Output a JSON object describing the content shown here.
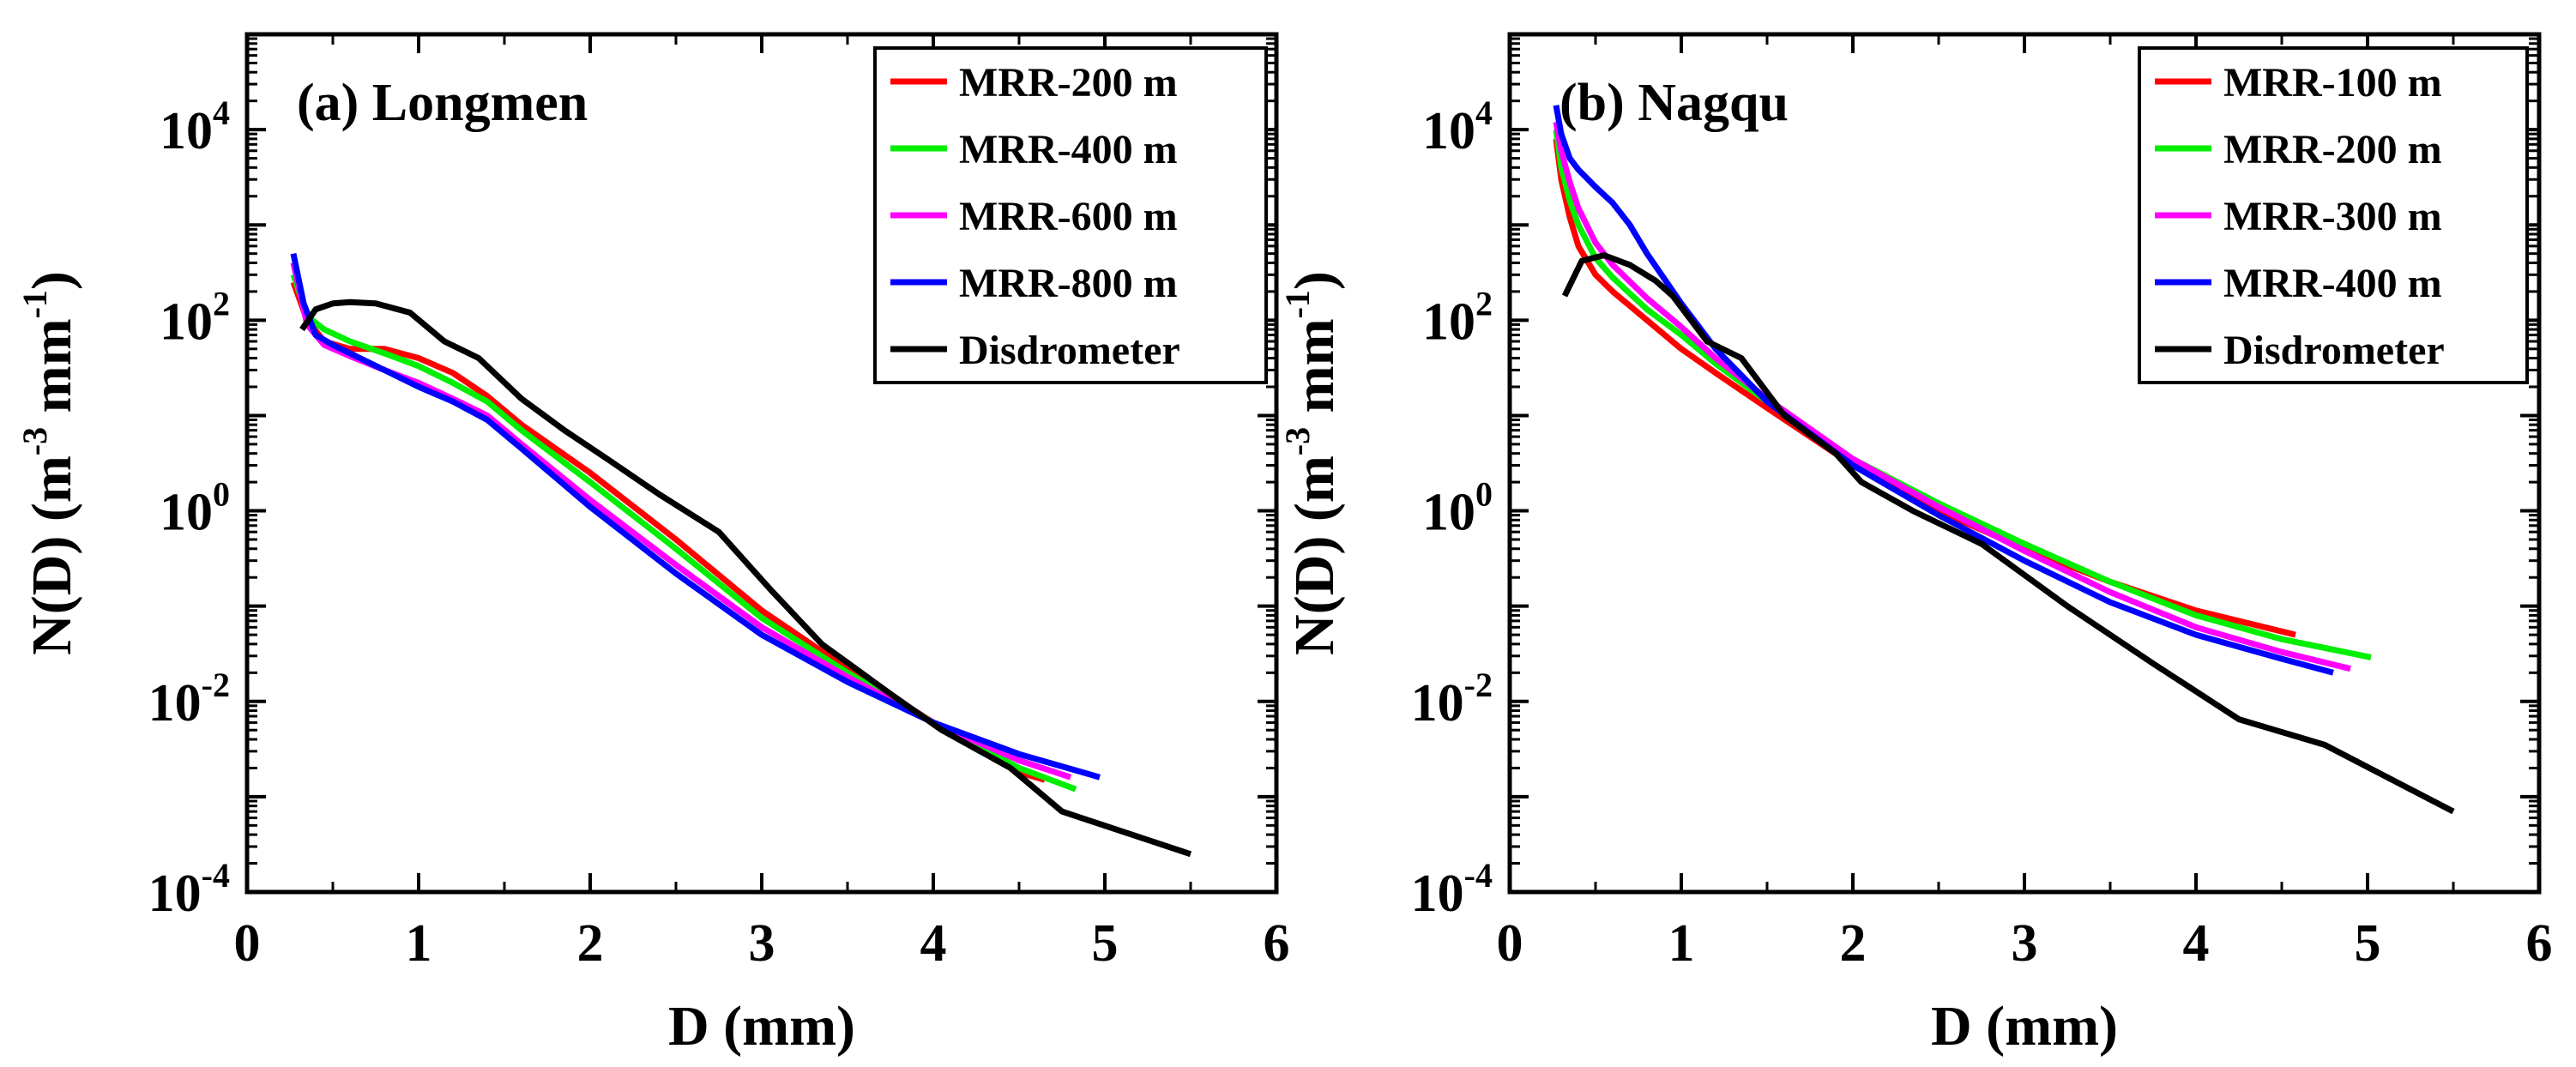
{
  "chart_data": [
    {
      "type": "line",
      "title": "(a) Longmen",
      "xlabel": "D (mm)",
      "ylabel": {
        "base": "N(D) (m",
        "exp1": "-3",
        "mid": " mm",
        "exp2": "-1",
        "end": ")"
      },
      "xlim": [
        0,
        6
      ],
      "ylim": [
        0.0001,
        100000
      ],
      "yscale": "log",
      "xticks": [
        "0",
        "1",
        "2",
        "3",
        "4",
        "5",
        "6"
      ],
      "yticks": [
        {
          "base": "10",
          "exp": "-4",
          "value": 0.0001
        },
        {
          "base": "10",
          "exp": "-2",
          "value": 0.01
        },
        {
          "base": "10",
          "exp": "0",
          "value": 1
        },
        {
          "base": "10",
          "exp": "2",
          "value": 100
        },
        {
          "base": "10",
          "exp": "4",
          "value": 10000
        }
      ],
      "grid": false,
      "legend_position": "top-right",
      "series": [
        {
          "name": "MRR-200 m",
          "color": "#ff0000",
          "x": [
            0.27,
            0.35,
            0.45,
            0.6,
            0.8,
            1.0,
            1.2,
            1.4,
            1.6,
            2.0,
            2.5,
            3.0,
            3.5,
            4.0,
            4.5,
            4.65
          ],
          "y": [
            250,
            100,
            60,
            50,
            50,
            40,
            28,
            16,
            8,
            2.5,
            0.5,
            0.09,
            0.022,
            0.006,
            0.0018,
            0.0015
          ]
        },
        {
          "name": "MRR-400 m",
          "color": "#00ee00",
          "x": [
            0.27,
            0.35,
            0.45,
            0.6,
            0.8,
            1.0,
            1.2,
            1.4,
            1.6,
            2.0,
            2.5,
            3.0,
            3.5,
            4.0,
            4.5,
            4.83
          ],
          "y": [
            300,
            110,
            80,
            60,
            45,
            33,
            22,
            14,
            7,
            2.0,
            0.4,
            0.075,
            0.02,
            0.006,
            0.002,
            0.0012
          ]
        },
        {
          "name": "MRR-600 m",
          "color": "#ff00ff",
          "x": [
            0.27,
            0.35,
            0.45,
            0.6,
            0.8,
            1.0,
            1.2,
            1.4,
            1.6,
            2.0,
            2.5,
            3.0,
            3.5,
            4.0,
            4.5,
            4.8
          ],
          "y": [
            400,
            90,
            55,
            42,
            30,
            22,
            15,
            10,
            5,
            1.3,
            0.27,
            0.06,
            0.018,
            0.006,
            0.0024,
            0.0016
          ]
        },
        {
          "name": "MRR-800 m",
          "color": "#0000ff",
          "x": [
            0.27,
            0.33,
            0.4,
            0.5,
            0.6,
            0.8,
            1.0,
            1.2,
            1.4,
            1.6,
            2.0,
            2.5,
            3.0,
            3.5,
            4.0,
            4.5,
            4.97
          ],
          "y": [
            500,
            150,
            70,
            55,
            45,
            30,
            20,
            14,
            9,
            4.5,
            1.1,
            0.22,
            0.05,
            0.016,
            0.006,
            0.0028,
            0.0016
          ]
        },
        {
          "name": "Disdrometer",
          "color": "#000000",
          "x": [
            0.32,
            0.4,
            0.5,
            0.6,
            0.75,
            0.95,
            1.15,
            1.35,
            1.6,
            1.85,
            2.1,
            2.4,
            2.75,
            3.05,
            3.35,
            3.75,
            4.05,
            4.45,
            4.75,
            5.5
          ],
          "y": [
            80,
            130,
            150,
            155,
            150,
            120,
            60,
            40,
            15,
            7,
            3.5,
            1.5,
            0.6,
            0.15,
            0.04,
            0.012,
            0.005,
            0.002,
            0.0007,
            0.00025
          ]
        }
      ]
    },
    {
      "type": "line",
      "title": "(b) Nagqu",
      "xlabel": "D (mm)",
      "ylabel": {
        "base": "N(D) (m",
        "exp1": "-3",
        "mid": " mm",
        "exp2": "-1",
        "end": ")"
      },
      "xlim": [
        0,
        6
      ],
      "ylim": [
        0.0001,
        100000
      ],
      "yscale": "log",
      "xticks": [
        "0",
        "1",
        "2",
        "3",
        "4",
        "5",
        "6"
      ],
      "yticks": [
        {
          "base": "10",
          "exp": "-4",
          "value": 0.0001
        },
        {
          "base": "10",
          "exp": "-2",
          "value": 0.01
        },
        {
          "base": "10",
          "exp": "0",
          "value": 1
        },
        {
          "base": "10",
          "exp": "2",
          "value": 100
        },
        {
          "base": "10",
          "exp": "4",
          "value": 10000
        }
      ],
      "grid": false,
      "legend_position": "top-right",
      "series": [
        {
          "name": "MRR-100 m",
          "color": "#ff0000",
          "x": [
            0.27,
            0.3,
            0.35,
            0.4,
            0.5,
            0.6,
            0.8,
            1.0,
            1.2,
            1.5,
            2.0,
            2.5,
            3.0,
            3.5,
            4.0,
            4.58
          ],
          "y": [
            8000,
            3000,
            1200,
            600,
            300,
            200,
            100,
            50,
            28,
            12,
            3,
            1.0,
            0.4,
            0.18,
            0.09,
            0.05
          ]
        },
        {
          "name": "MRR-200 m",
          "color": "#00ee00",
          "x": [
            0.27,
            0.3,
            0.35,
            0.4,
            0.5,
            0.6,
            0.8,
            1.0,
            1.2,
            1.5,
            2.0,
            2.5,
            3.0,
            3.5,
            4.0,
            4.5,
            5.02
          ],
          "y": [
            10000,
            4000,
            1800,
            1000,
            450,
            280,
            130,
            70,
            35,
            14,
            3.5,
            1.2,
            0.45,
            0.18,
            0.08,
            0.045,
            0.029
          ]
        },
        {
          "name": "MRR-300 m",
          "color": "#ff00ff",
          "x": [
            0.27,
            0.3,
            0.35,
            0.4,
            0.5,
            0.6,
            0.8,
            1.0,
            1.2,
            1.5,
            2.0,
            2.5,
            3.0,
            3.5,
            4.0,
            4.5,
            4.9
          ],
          "y": [
            12000,
            6000,
            2800,
            1500,
            650,
            380,
            170,
            85,
            40,
            15,
            3.5,
            1.1,
            0.38,
            0.14,
            0.06,
            0.033,
            0.022
          ]
        },
        {
          "name": "MRR-400 m",
          "color": "#0000ff",
          "x": [
            0.27,
            0.3,
            0.35,
            0.4,
            0.5,
            0.6,
            0.7,
            0.8,
            1.0,
            1.2,
            1.5,
            2.0,
            2.5,
            3.0,
            3.5,
            4.0,
            4.5,
            4.8
          ],
          "y": [
            18000,
            9000,
            5000,
            3800,
            2500,
            1700,
            1000,
            500,
            150,
            50,
            14,
            3.0,
            0.9,
            0.3,
            0.11,
            0.05,
            0.028,
            0.02
          ]
        },
        {
          "name": "Disdrometer",
          "color": "#000000",
          "x": [
            0.32,
            0.42,
            0.55,
            0.7,
            0.85,
            0.95,
            1.15,
            1.35,
            1.6,
            1.9,
            2.05,
            2.35,
            2.75,
            3.25,
            3.75,
            4.25,
            4.75,
            5.5
          ],
          "y": [
            180,
            420,
            480,
            380,
            260,
            180,
            60,
            40,
            10,
            4,
            2,
            1,
            0.45,
            0.1,
            0.025,
            0.0065,
            0.0035,
            0.0007
          ]
        }
      ]
    }
  ]
}
